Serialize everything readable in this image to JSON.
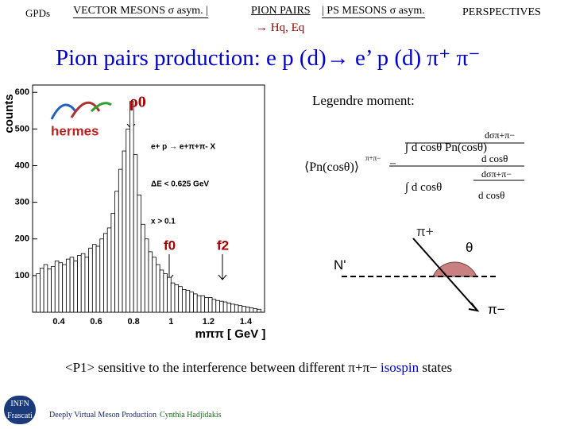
{
  "header": {
    "left": "GPDs",
    "nav": [
      "VECTOR MESONS  σ  asym.  |",
      "PION PAIRS",
      "| PS MESONS  σ  asym."
    ],
    "right": "PERSPECTIVES",
    "subnav": "→ Hq, Eq"
  },
  "title": "Pion pairs production: e p (d)→ e’ p (d) π⁺ π⁻",
  "chart_data": {
    "type": "histogram",
    "ylabel": "counts",
    "xlabel": "mππ [ GeV ]",
    "color": "#000000",
    "bins": [
      0.28,
      0.3,
      0.32,
      0.34,
      0.36,
      0.38,
      0.4,
      0.42,
      0.44,
      0.46,
      0.48,
      0.5,
      0.52,
      0.54,
      0.56,
      0.58,
      0.6,
      0.62,
      0.64,
      0.66,
      0.68,
      0.7,
      0.72,
      0.74,
      0.76,
      0.78,
      0.8,
      0.82,
      0.84,
      0.86,
      0.88,
      0.9,
      0.92,
      0.94,
      0.96,
      0.98,
      1,
      1.02,
      1.04,
      1.06,
      1.08,
      1.1,
      1.12,
      1.14,
      1.16,
      1.18,
      1.2,
      1.22,
      1.24,
      1.26,
      1.28,
      1.3,
      1.32,
      1.34,
      1.36,
      1.38,
      1.4,
      1.42,
      1.44,
      1.46,
      1.48
    ],
    "values": [
      105,
      120,
      130,
      118,
      125,
      140,
      135,
      130,
      145,
      150,
      140,
      155,
      160,
      150,
      175,
      185,
      180,
      200,
      215,
      230,
      270,
      330,
      390,
      440,
      500,
      575,
      430,
      320,
      240,
      200,
      165,
      150,
      130,
      115,
      105,
      95,
      80,
      75,
      70,
      62,
      60,
      55,
      50,
      45,
      45,
      40,
      40,
      35,
      32,
      30,
      28,
      25,
      22,
      20,
      18,
      16,
      14,
      12,
      10,
      8
    ],
    "xlim": [
      0.26,
      1.5
    ],
    "ylim": [
      0,
      620
    ],
    "xticks": [
      0.4,
      0.6,
      0.8,
      1,
      1.2,
      1.4
    ],
    "yticks": [
      100,
      200,
      300,
      400,
      500,
      600
    ],
    "annotations": [
      "ρ0",
      "hermes",
      "e+ p → e+π+π- X",
      "ΔE < 0.625 GeV",
      "x > 0.1",
      "f0",
      "f2"
    ]
  },
  "legendre": {
    "heading": "Legendre moment:",
    "lhs": "⟨Pn(cosθ)⟩",
    "lhs_sup": "π+π−",
    "equals": "=",
    "numerator": "∫ d cosθ Pn(cosθ)",
    "denominator": "∫ d cosθ",
    "dsigma": "dσπ+π−",
    "dcos": "d cosθ"
  },
  "diagram": {
    "pi_plus": "π+",
    "theta": "θ",
    "n_prime": "N'",
    "pi_minus": "π−"
  },
  "statement": {
    "main": "<P1> sensitive to the interference between different π+π−",
    "highlight": "isospin",
    "end": "states"
  },
  "footer": {
    "logo_top": "INFN",
    "logo_bottom": "Frascati",
    "talk": "Deeply Virtual Meson Production",
    "author": "Cynthia Hadjidakis"
  }
}
